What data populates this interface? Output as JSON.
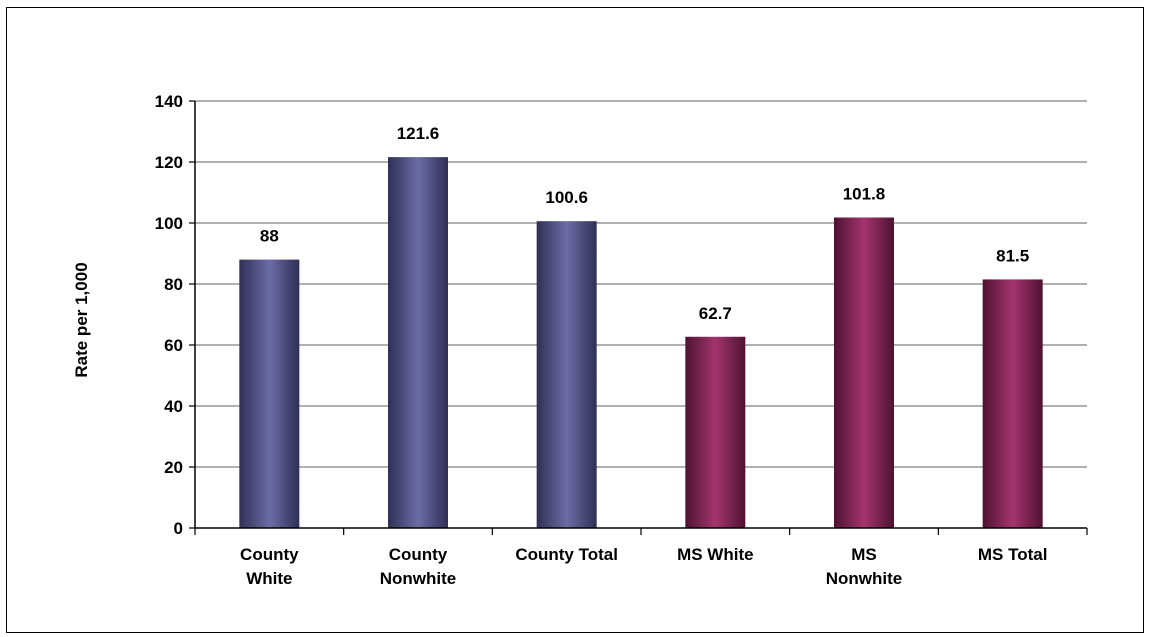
{
  "chart_data": {
    "type": "bar",
    "title": "",
    "xlabel": "",
    "ylabel": "Rate per 1,000",
    "ylim": [
      0,
      140
    ],
    "yticks": [
      0,
      20,
      40,
      60,
      80,
      100,
      120,
      140
    ],
    "grid": true,
    "categories": [
      [
        "County",
        "White"
      ],
      [
        "County",
        "Nonwhite"
      ],
      [
        "County Total"
      ],
      [
        "MS White"
      ],
      [
        "MS",
        "Nonwhite"
      ],
      [
        "MS Total"
      ]
    ],
    "values": [
      88,
      121.6,
      100.6,
      62.7,
      101.8,
      81.5
    ],
    "data_labels": [
      "88",
      "121.6",
      "100.6",
      "62.7",
      "101.8",
      "81.5"
    ],
    "bar_colors": [
      "#5a5a8c",
      "#5a5a8c",
      "#5a5a8c",
      "#8c2a5c",
      "#8c2a5c",
      "#8c2a5c"
    ],
    "colors": {
      "county": "#5a5a8c",
      "ms": "#8c2a5c",
      "grid": "#808080",
      "axis": "#000000"
    }
  }
}
